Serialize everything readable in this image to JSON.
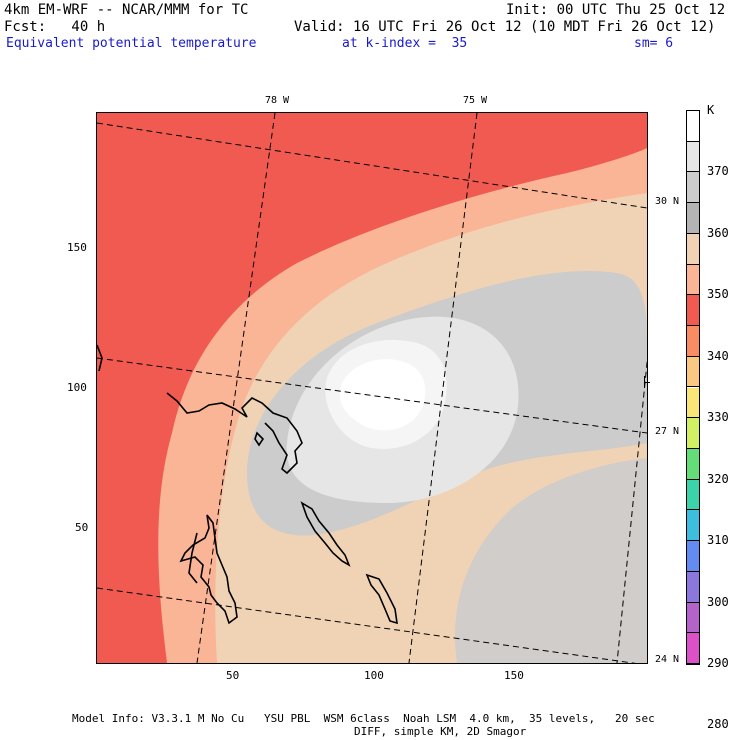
{
  "header": {
    "line1_left": "4km EM-WRF -- NCAR/MMM for TC",
    "line1_right": "Init: 00 UTC Thu 25 Oct 12",
    "line2_left": "Fcst:   40 h",
    "line2_right": "Valid: 16 UTC Fri 26 Oct 12 (10 MDT Fri 26 Oct 12)",
    "field_name": "Equivalent potential temperature",
    "level": "at k-index =  35",
    "smoothing": "sm= 6"
  },
  "axes": {
    "x_ticks": [
      "50",
      "100",
      "150"
    ],
    "y_ticks": [
      "150",
      "100",
      "50"
    ],
    "lon_labels": [
      "78 W",
      "75 W"
    ],
    "lat_labels": [
      "30 N",
      "27 N",
      "24 N"
    ]
  },
  "colorbar": {
    "unit": "K",
    "labels": [
      "370",
      "360",
      "350",
      "340",
      "330",
      "320",
      "310",
      "300",
      "290",
      "280"
    ],
    "colors": [
      "#ffffff",
      "#e6e6e6",
      "#cccccc",
      "#b4b4b4",
      "#f0d2b4",
      "#fab496",
      "#f05a50",
      "#fa8c64",
      "#fac882",
      "#fae678",
      "#d2f064",
      "#64dc78",
      "#3cd2aa",
      "#3cbedc",
      "#648cf0",
      "#8c78dc",
      "#b464c8",
      "#dc50c8"
    ]
  },
  "footer": {
    "line1": "Model Info: V3.3.1 M No Cu   YSU PBL  WSM 6class  Noah LSM  4.0 km,  35 levels,   20 sec",
    "line2": "DIFF, simple KM, 2D Smagor"
  }
}
